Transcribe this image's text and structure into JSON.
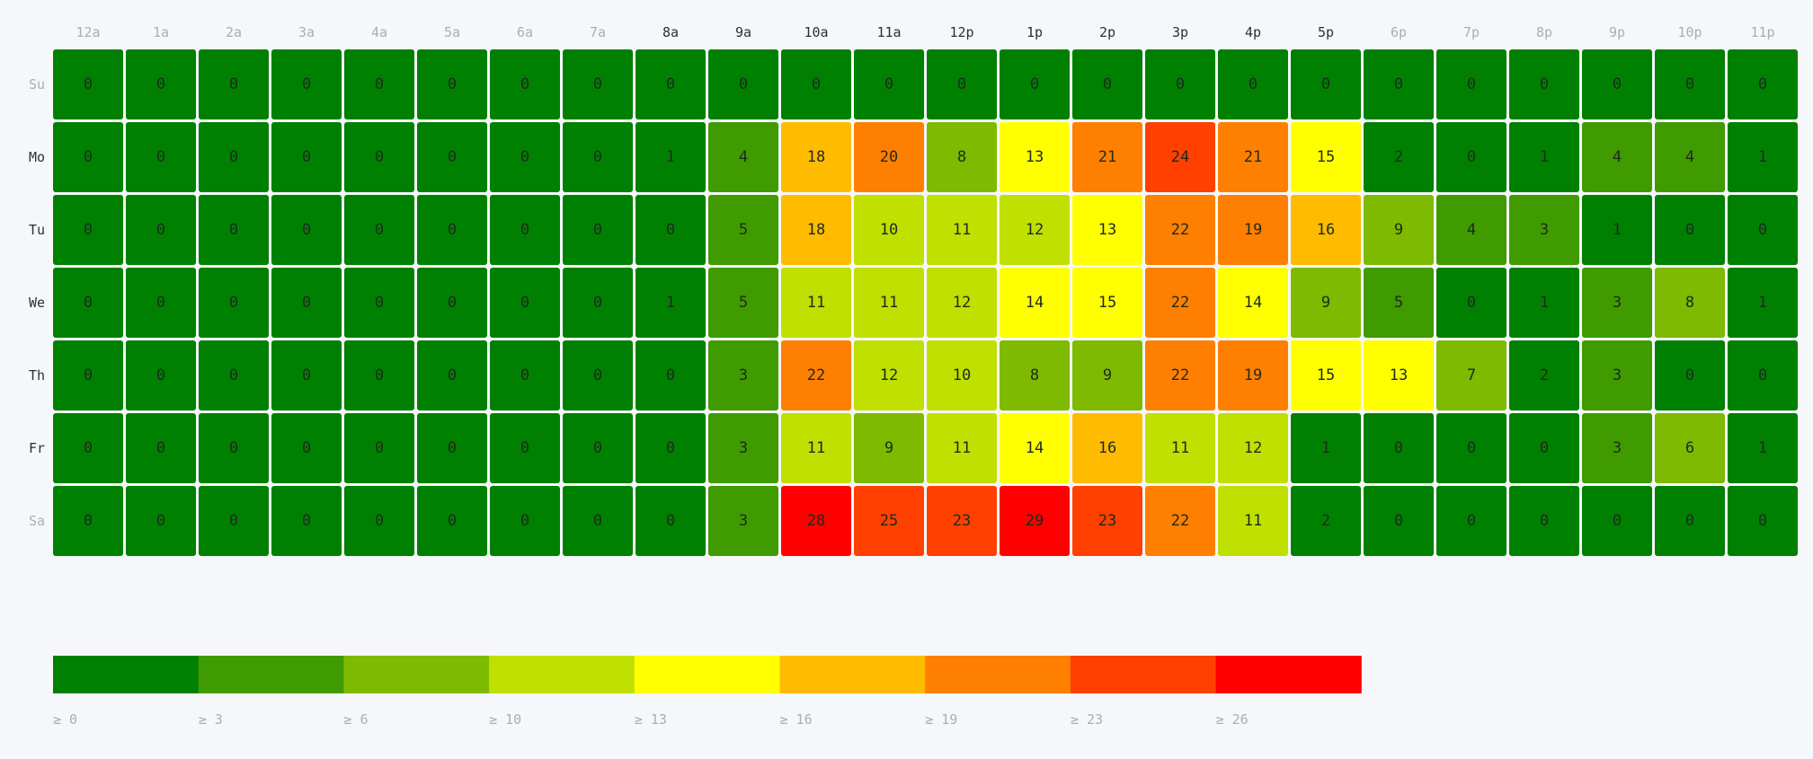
{
  "chart_data": {
    "type": "heatmap",
    "x_labels": [
      "12a",
      "1a",
      "2a",
      "3a",
      "4a",
      "5a",
      "6a",
      "7a",
      "8a",
      "9a",
      "10a",
      "11a",
      "12p",
      "1p",
      "2p",
      "3p",
      "4p",
      "5p",
      "6p",
      "7p",
      "8p",
      "9p",
      "10p",
      "11p"
    ],
    "y_labels": [
      "Su",
      "Mo",
      "Tu",
      "We",
      "Th",
      "Fr",
      "Sa"
    ],
    "x_label_emphasis": [
      false,
      false,
      false,
      false,
      false,
      false,
      false,
      false,
      true,
      true,
      true,
      true,
      true,
      true,
      true,
      true,
      true,
      true,
      false,
      false,
      false,
      false,
      false,
      false
    ],
    "y_label_emphasis": [
      false,
      true,
      true,
      true,
      true,
      true,
      false
    ],
    "values": [
      [
        0,
        0,
        0,
        0,
        0,
        0,
        0,
        0,
        0,
        0,
        0,
        0,
        0,
        0,
        0,
        0,
        0,
        0,
        0,
        0,
        0,
        0,
        0,
        0
      ],
      [
        0,
        0,
        0,
        0,
        0,
        0,
        0,
        0,
        1,
        4,
        18,
        20,
        8,
        13,
        21,
        24,
        21,
        15,
        2,
        0,
        1,
        4,
        4,
        1
      ],
      [
        0,
        0,
        0,
        0,
        0,
        0,
        0,
        0,
        0,
        5,
        18,
        10,
        11,
        12,
        13,
        22,
        19,
        16,
        9,
        4,
        3,
        1,
        0,
        0
      ],
      [
        0,
        0,
        0,
        0,
        0,
        0,
        0,
        0,
        1,
        5,
        11,
        11,
        12,
        14,
        15,
        22,
        14,
        9,
        5,
        0,
        1,
        3,
        8,
        1
      ],
      [
        0,
        0,
        0,
        0,
        0,
        0,
        0,
        0,
        0,
        3,
        22,
        12,
        10,
        8,
        9,
        22,
        19,
        15,
        13,
        7,
        2,
        3,
        0,
        0
      ],
      [
        0,
        0,
        0,
        0,
        0,
        0,
        0,
        0,
        0,
        3,
        11,
        9,
        11,
        14,
        16,
        11,
        12,
        1,
        0,
        0,
        0,
        3,
        6,
        1
      ],
      [
        0,
        0,
        0,
        0,
        0,
        0,
        0,
        0,
        0,
        3,
        28,
        25,
        23,
        29,
        23,
        22,
        11,
        2,
        0,
        0,
        0,
        0,
        0,
        0
      ]
    ],
    "legend": {
      "thresholds": [
        0,
        3,
        6,
        10,
        13,
        16,
        19,
        23,
        26
      ],
      "labels": [
        "≥ 0",
        "≥ 3",
        "≥ 6",
        "≥ 10",
        "≥ 13",
        "≥ 16",
        "≥ 19",
        "≥ 23",
        "≥ 26"
      ],
      "colors": [
        "#008000",
        "#3f9b00",
        "#7dba00",
        "#bfe000",
        "#ffff00",
        "#ffbb00",
        "#ff7f00",
        "#ff4000",
        "#ff0000"
      ]
    }
  }
}
